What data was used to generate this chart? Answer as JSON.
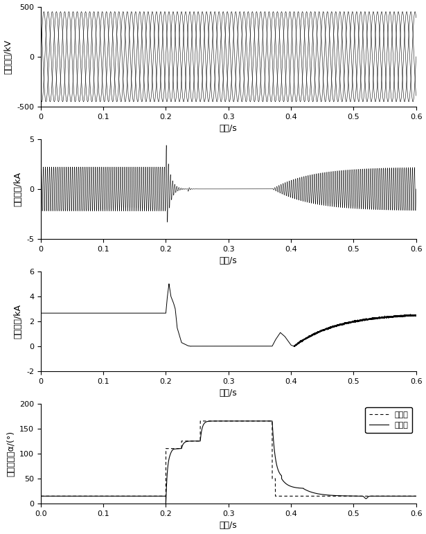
{
  "fig_width": 6.15,
  "fig_height": 7.71,
  "dpi": 100,
  "xlim": [
    0,
    0.6
  ],
  "xticks": [
    0,
    0.1,
    0.2,
    0.3,
    0.4,
    0.5,
    0.6
  ],
  "xlabel": "时间/s",
  "panel1": {
    "ylabel": "交流电压/kV",
    "ylim": [
      -500,
      500
    ],
    "yticks": [
      -500,
      0,
      500
    ],
    "freq": 50,
    "amplitude": 450
  },
  "panel2": {
    "ylabel": "阀侧电流/kA",
    "ylim": [
      -5,
      5
    ],
    "yticks": [
      -5,
      0,
      5
    ],
    "amplitude_before": 2.2,
    "freq": 300
  },
  "panel3": {
    "ylabel": "直流电流/kA",
    "ylim": [
      -2,
      6
    ],
    "yticks": [
      -2,
      0,
      2,
      4,
      6
    ]
  },
  "panel4": {
    "ylabel": "触发延迟角α/(°)",
    "ylim": [
      0,
      200
    ],
    "yticks": [
      0,
      50,
      100,
      150,
      200
    ],
    "legend_target": "目标値",
    "legend_measured": "测量値"
  },
  "line_color": "#000000",
  "background_color": "#ffffff"
}
